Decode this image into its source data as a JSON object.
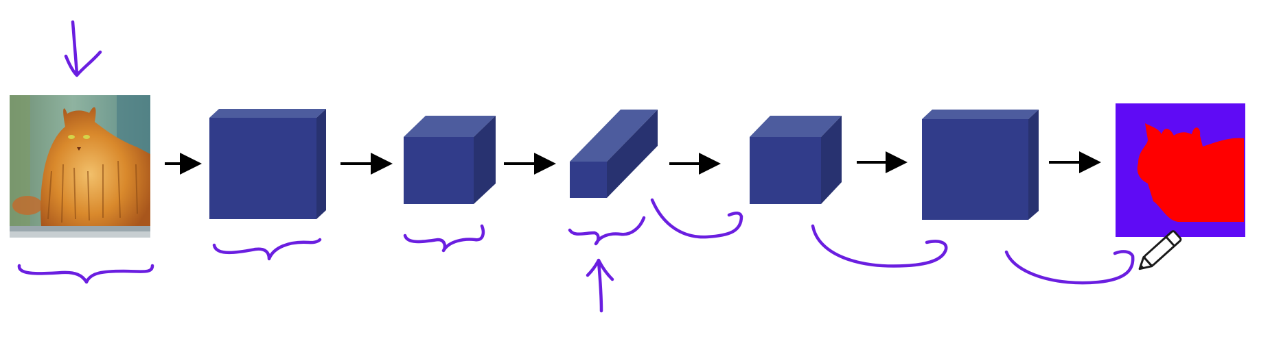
{
  "colors": {
    "background": "#ffffff",
    "cube_front": "#313c8a",
    "cube_top": "#4d5c9e",
    "cube_side": "#283270",
    "arrow": "#000000",
    "annotation_ink": "#6a1ee0",
    "mask_background": "#5f0bf5",
    "mask_foreground": "#ff0000",
    "photo_fur": "#d9892c",
    "photo_bg": "#5a8a7a"
  },
  "pipeline": {
    "input": {
      "kind": "image",
      "subject": "cat-photo"
    },
    "stages": [
      {
        "kind": "volume",
        "shape": "large-cube"
      },
      {
        "kind": "volume",
        "shape": "medium-cube"
      },
      {
        "kind": "volume",
        "shape": "bottleneck-slab"
      },
      {
        "kind": "volume",
        "shape": "medium-cube"
      },
      {
        "kind": "volume",
        "shape": "large-cube"
      }
    ],
    "output": {
      "kind": "image",
      "subject": "segmentation-mask"
    }
  },
  "icons": {
    "pencil_cursor": "pencil-icon"
  }
}
